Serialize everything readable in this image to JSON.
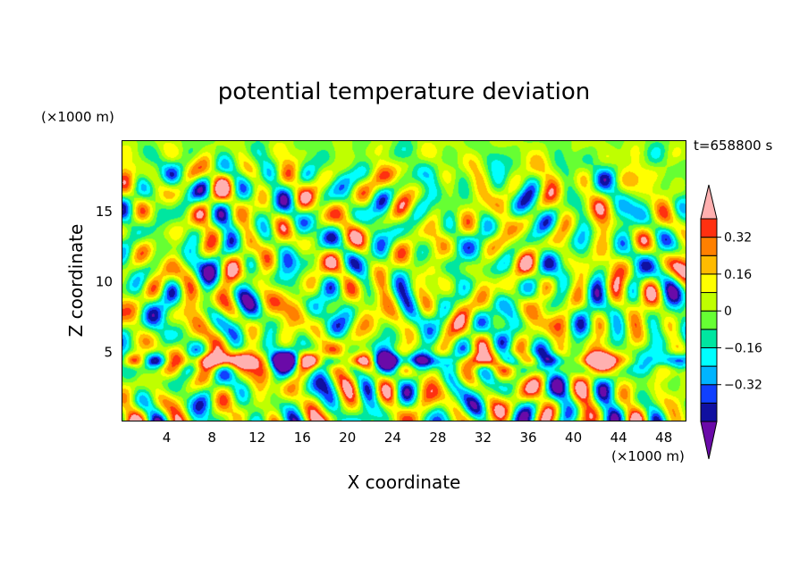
{
  "chart_data": {
    "type": "heatmap",
    "title": "potential temperature deviation",
    "xlabel": "X coordinate",
    "ylabel": "Z coordinate",
    "x_unit": "(×1000 m)",
    "z_unit": "(×1000 m)",
    "time_label": "t=658800 s",
    "xlim": [
      0,
      50
    ],
    "ylim": [
      0,
      20
    ],
    "x_ticks": [
      4,
      8,
      12,
      16,
      20,
      24,
      28,
      32,
      36,
      40,
      44,
      48
    ],
    "x_tick_labels": [
      "4",
      "8",
      "12",
      "16",
      "20",
      "24",
      "28",
      "32",
      "36",
      "40",
      "44",
      "48"
    ],
    "y_ticks": [
      5,
      10,
      15
    ],
    "y_tick_labels": [
      "5",
      "10",
      "15"
    ],
    "colorbar": {
      "levels": [
        -0.48,
        -0.4,
        -0.32,
        -0.24,
        -0.16,
        -0.08,
        0,
        0.08,
        0.16,
        0.24,
        0.32,
        0.4,
        0.48
      ],
      "labeled_levels": [
        0.32,
        0.16,
        0,
        -0.16,
        -0.32
      ],
      "labels": [
        "0.32",
        "0.16",
        "0",
        "−0.16",
        "−0.32"
      ],
      "colors": [
        "#6a0aa8",
        "#1010a0",
        "#1040ff",
        "#00b4ff",
        "#00ffff",
        "#00e6a0",
        "#66ff33",
        "#bfff00",
        "#ffff00",
        "#ffbb00",
        "#ff8000",
        "#ff3010",
        "#ffb0b0"
      ],
      "extend": "both"
    }
  }
}
